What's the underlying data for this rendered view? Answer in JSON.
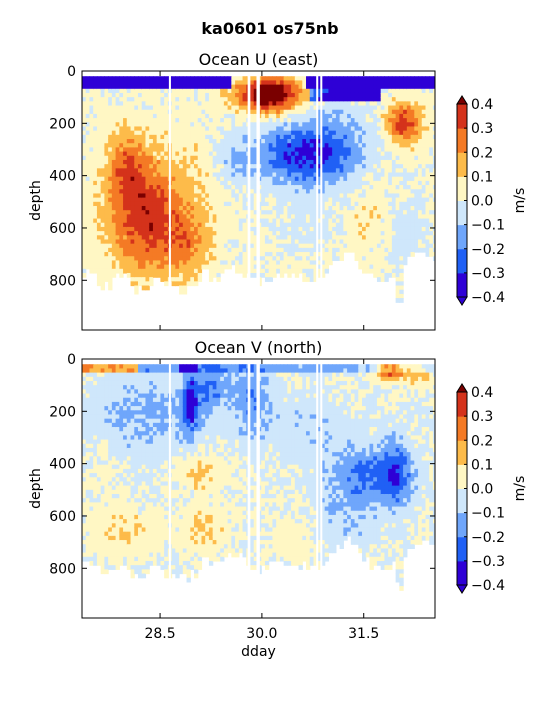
{
  "figure": {
    "suptitle": "ka0601 os75nb"
  },
  "colorbar": {
    "label": "m/s",
    "ticks": [
      "0.4",
      "0.3",
      "0.2",
      "0.1",
      "0.0",
      "−0.1",
      "−0.2",
      "−0.3",
      "−0.4"
    ]
  },
  "chart_data": [
    {
      "type": "heatmap",
      "title": "Ocean U (east)",
      "xlabel": "",
      "ylabel": "depth",
      "zlabel": "m/s",
      "xlim": [
        27.35,
        32.55
      ],
      "ylim": [
        990,
        0
      ],
      "y_inverted": true,
      "x_ticks": [
        "28.5",
        "30.0",
        "31.5"
      ],
      "x_ticks_shown": false,
      "y_ticks": [
        "0",
        "200",
        "400",
        "600",
        "800"
      ],
      "levels": [
        -0.4,
        -0.3,
        -0.2,
        -0.1,
        0.0,
        0.1,
        0.2,
        0.3,
        0.4
      ],
      "colors": [
        "#2e00d6",
        "#2060f5",
        "#6fa6fb",
        "#cfe7fb",
        "#fff7c4",
        "#fdbb4a",
        "#f47a25",
        "#d4321b",
        "#7a0000"
      ],
      "extend": "both",
      "samples": [
        {
          "x": 27.7,
          "y": 60,
          "value": -0.45
        },
        {
          "x": 28.1,
          "y": 60,
          "value": -0.45
        },
        {
          "x": 28.9,
          "y": 60,
          "value": -0.4
        },
        {
          "x": 29.9,
          "y": 80,
          "value": 0.45
        },
        {
          "x": 30.2,
          "y": 100,
          "value": 0.45
        },
        {
          "x": 31.0,
          "y": 70,
          "value": -0.4
        },
        {
          "x": 32.0,
          "y": 200,
          "value": 0.3
        },
        {
          "x": 28.1,
          "y": 400,
          "value": 0.3
        },
        {
          "x": 28.3,
          "y": 650,
          "value": 0.25
        },
        {
          "x": 28.7,
          "y": 700,
          "value": 0.2
        },
        {
          "x": 29.6,
          "y": 300,
          "value": -0.1
        },
        {
          "x": 30.3,
          "y": 320,
          "value": -0.3
        },
        {
          "x": 31.0,
          "y": 300,
          "value": -0.25
        },
        {
          "x": 31.5,
          "y": 500,
          "value": 0.05
        },
        {
          "x": 32.2,
          "y": 600,
          "value": -0.05
        }
      ]
    },
    {
      "type": "heatmap",
      "title": "Ocean V (north)",
      "xlabel": "dday",
      "ylabel": "depth",
      "zlabel": "m/s",
      "xlim": [
        27.35,
        32.55
      ],
      "ylim": [
        990,
        0
      ],
      "y_inverted": true,
      "x_ticks": [
        "28.5",
        "30.0",
        "31.5"
      ],
      "x_ticks_shown": true,
      "y_ticks": [
        "0",
        "200",
        "400",
        "600",
        "800"
      ],
      "levels": [
        -0.4,
        -0.3,
        -0.2,
        -0.1,
        0.0,
        0.1,
        0.2,
        0.3,
        0.4
      ],
      "colors": [
        "#2e00d6",
        "#2060f5",
        "#6fa6fb",
        "#cfe7fb",
        "#fff7c4",
        "#fdbb4a",
        "#f47a25",
        "#d4321b",
        "#7a0000"
      ],
      "extend": "both",
      "samples": [
        {
          "x": 27.5,
          "y": 60,
          "value": 0.2
        },
        {
          "x": 28.9,
          "y": 150,
          "value": -0.3
        },
        {
          "x": 29.5,
          "y": 60,
          "value": -0.2
        },
        {
          "x": 31.9,
          "y": 50,
          "value": 0.35
        },
        {
          "x": 29.1,
          "y": 420,
          "value": 0.15
        },
        {
          "x": 27.9,
          "y": 650,
          "value": 0.1
        },
        {
          "x": 29.0,
          "y": 650,
          "value": 0.12
        },
        {
          "x": 30.5,
          "y": 300,
          "value": -0.1
        },
        {
          "x": 31.6,
          "y": 450,
          "value": -0.25
        },
        {
          "x": 31.2,
          "y": 600,
          "value": -0.05
        }
      ]
    }
  ]
}
